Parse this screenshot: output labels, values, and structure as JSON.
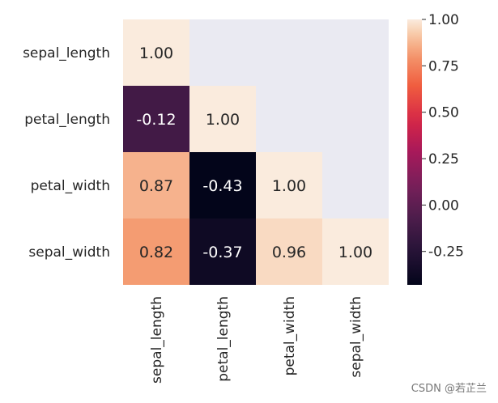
{
  "chart_data": {
    "type": "heatmap",
    "title": "",
    "row_labels": [
      "sepal_length",
      "petal_length",
      "petal_width",
      "sepal_width"
    ],
    "col_labels": [
      "sepal_length",
      "petal_length",
      "petal_width",
      "sepal_width"
    ],
    "values": [
      [
        1.0,
        null,
        null,
        null
      ],
      [
        -0.12,
        1.0,
        null,
        null
      ],
      [
        0.87,
        -0.43,
        1.0,
        null
      ],
      [
        0.82,
        -0.37,
        0.96,
        1.0
      ]
    ],
    "annotations": [
      [
        "1.00",
        "",
        "",
        ""
      ],
      [
        "-0.12",
        "1.00",
        "",
        ""
      ],
      [
        "0.87",
        "-0.43",
        "1.00",
        ""
      ],
      [
        "0.82",
        "-0.37",
        "0.96",
        "1.00"
      ]
    ],
    "masked": "upper triangle",
    "colormap": "rocket",
    "vmin": -0.43,
    "vmax": 1.0,
    "colorbar_ticks": [
      1.0,
      0.75,
      0.5,
      0.25,
      0.0,
      -0.25
    ],
    "colorbar_tick_labels": [
      "1.00",
      "0.75",
      "0.50",
      "0.25",
      "0.00",
      "-0.25"
    ],
    "mask_color": "#eaeaf2"
  },
  "watermark": "CSDN @若芷兰"
}
